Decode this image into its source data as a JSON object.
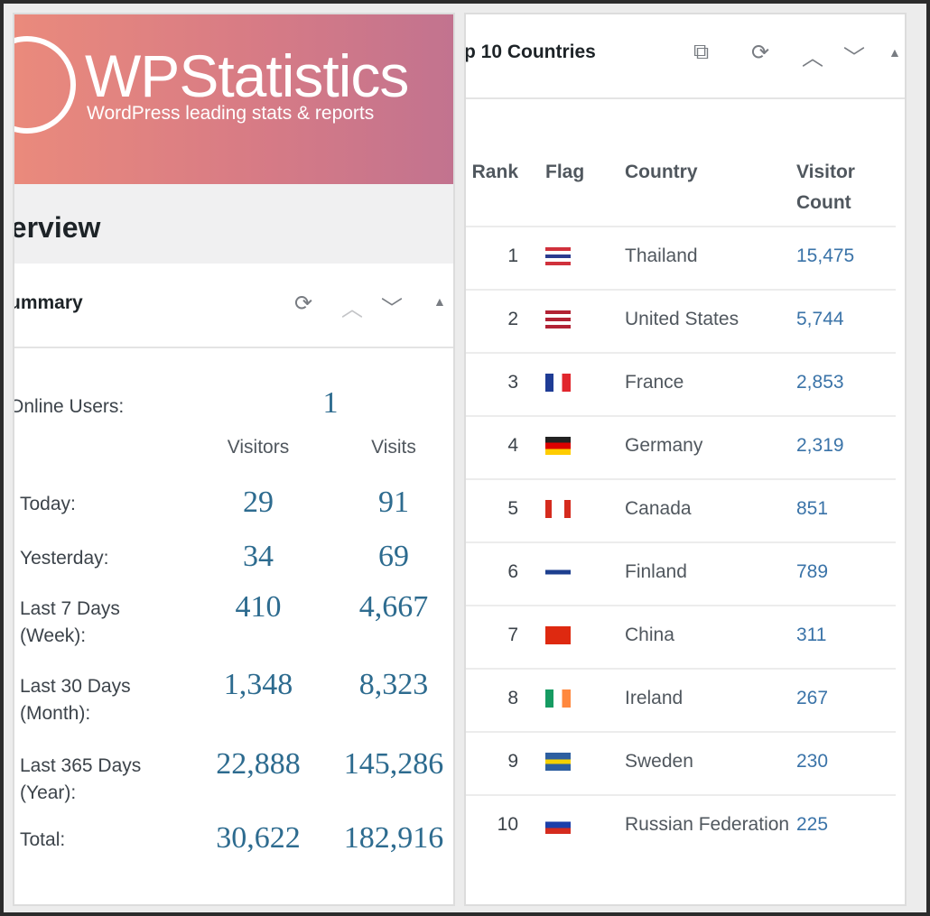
{
  "banner": {
    "title": "WPStatistics",
    "subtitle": "WordPress leading stats & reports"
  },
  "page_title": "verview",
  "summary": {
    "title": "ummary",
    "online_label": "Online Users:",
    "online_value": "1",
    "col_visitors": "Visitors",
    "col_visits": "Visits",
    "rows": [
      {
        "label": "Today:",
        "visitors": "29",
        "visits": "91"
      },
      {
        "label": "Yesterday:",
        "visitors": "34",
        "visits": "69"
      },
      {
        "label": "Last 7 Days (Week):",
        "visitors": "410",
        "visits": "4,667"
      },
      {
        "label": "Last 30 Days (Month):",
        "visitors": "1,348",
        "visits": "8,323"
      },
      {
        "label": "Last 365 Days (Year):",
        "visitors": "22,888",
        "visits": "145,286"
      },
      {
        "label": "Total:",
        "visitors": "30,622",
        "visits": "182,916"
      }
    ]
  },
  "countries": {
    "title": "p 10 Countries",
    "headers": {
      "rank": "Rank",
      "flag": "Flag",
      "country": "Country",
      "count": "Visitor Count"
    },
    "rows": [
      {
        "rank": "1",
        "country": "Thailand",
        "count": "15,475",
        "flag": [
          "#d0313c",
          "#fff",
          "#2a3b8f",
          "#fff",
          "#d0313c"
        ]
      },
      {
        "rank": "2",
        "country": "United States",
        "count": "5,744",
        "flag": [
          "#b22234",
          "#fff",
          "#b22234",
          "#fff",
          "#b22234"
        ]
      },
      {
        "rank": "3",
        "country": "France",
        "count": "2,853",
        "flag": "fr"
      },
      {
        "rank": "4",
        "country": "Germany",
        "count": "2,319",
        "flag": [
          "#222",
          "#d00",
          "#fc0"
        ]
      },
      {
        "rank": "5",
        "country": "Canada",
        "count": "851",
        "flag": "ca"
      },
      {
        "rank": "6",
        "country": "Finland",
        "count": "789",
        "flag": "fi"
      },
      {
        "rank": "7",
        "country": "China",
        "count": "311",
        "flag": [
          "#de2910"
        ]
      },
      {
        "rank": "8",
        "country": "Ireland",
        "count": "267",
        "flag": "ie"
      },
      {
        "rank": "9",
        "country": "Sweden",
        "count": "230",
        "flag": "se"
      },
      {
        "rank": "10",
        "country": "Russian Federation",
        "count": "225",
        "flag": [
          "#fff",
          "#1c3faa",
          "#d52b1e"
        ]
      }
    ]
  },
  "colors": {
    "accent": "#2d6b8f",
    "link": "#3a73a8"
  }
}
